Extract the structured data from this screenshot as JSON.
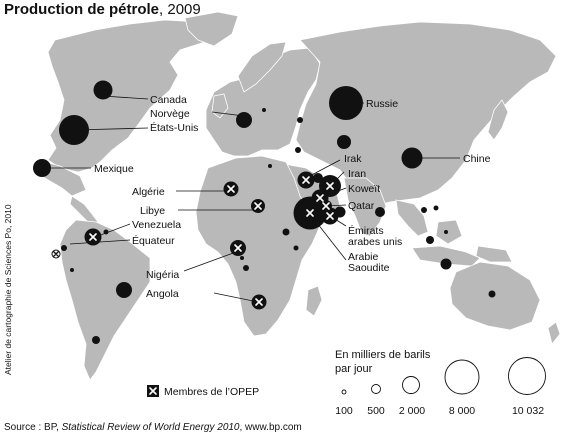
{
  "title": {
    "main": "Production de pétrole",
    "year": ", 2009"
  },
  "credit": "Atelier de cartographie de Sciences Po, 2010",
  "source": {
    "prefix": "Source : BP, ",
    "italic": "Statistical Review of World Energy 2010",
    "suffix": ", www.bp.com"
  },
  "legend": {
    "opep_label": "Membres de l’OPEP",
    "size_title_1": "En milliers de barils",
    "size_title_2": "par jour",
    "size_values": [
      "100",
      "500",
      "2 000",
      "8 000",
      "10 032"
    ]
  },
  "colors": {
    "land": "#b9b9b9",
    "border": "#ffffff",
    "circle": "#111111",
    "ocean": "#ffffff"
  },
  "map_data": {
    "unit": "milliers de barils par jour",
    "labeled_countries": [
      {
        "name": "Canada",
        "production": 3200,
        "opep": false
      },
      {
        "name": "Norvège",
        "production": 2300,
        "opep": false
      },
      {
        "name": "États-Unis",
        "production": 7200,
        "opep": false
      },
      {
        "name": "Mexique",
        "production": 3000,
        "opep": false
      },
      {
        "name": "Russie",
        "production": 10032,
        "opep": false
      },
      {
        "name": "Chine",
        "production": 3800,
        "opep": false
      },
      {
        "name": "Irak",
        "production": 2500,
        "opep": true
      },
      {
        "name": "Iran",
        "production": 4200,
        "opep": true
      },
      {
        "name": "Koweït",
        "production": 2500,
        "opep": true
      },
      {
        "name": "Qatar",
        "production": 1300,
        "opep": true
      },
      {
        "name": "Émirats\narabes unis",
        "production": 2600,
        "opep": true
      },
      {
        "name": "Arabie\nSaoudite",
        "production": 9700,
        "opep": true
      },
      {
        "name": "Algérie",
        "production": 1800,
        "opep": true
      },
      {
        "name": "Libye",
        "production": 1650,
        "opep": true
      },
      {
        "name": "Venezuela",
        "production": 2400,
        "opep": true
      },
      {
        "name": "Équateur",
        "production": 500,
        "opep": true
      },
      {
        "name": "Nigéria",
        "production": 2100,
        "opep": true
      },
      {
        "name": "Angola",
        "production": 1800,
        "opep": true
      }
    ]
  }
}
